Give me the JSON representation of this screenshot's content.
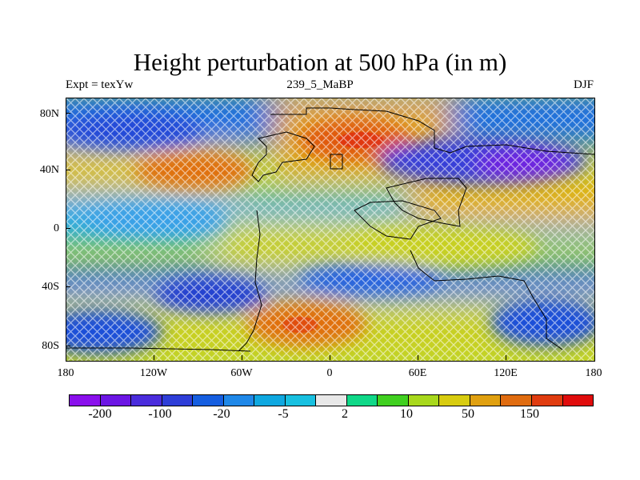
{
  "title": "Height perturbation at 500 hPa (in m)",
  "left_label": "Expt = texYw",
  "center_label": "239_5_MaBP",
  "right_label": "DJF",
  "lat_labels": [
    "80N",
    "40N",
    "0",
    "40S",
    "80S"
  ],
  "lon_labels": [
    "180",
    "120W",
    "60W",
    "0",
    "60E",
    "120E",
    "180"
  ],
  "colorbar": {
    "colors": [
      "#8a10ec",
      "#6c16e4",
      "#4a2cdc",
      "#2e3ed8",
      "#155ee0",
      "#1f88e8",
      "#0fa8e0",
      "#18c0e0",
      "#e8e8e8",
      "#10d888",
      "#40d020",
      "#a8d81c",
      "#d8cc10",
      "#e0a010",
      "#e06c10",
      "#e03c10",
      "#e00c0c"
    ],
    "labels": [
      "-200",
      "-100",
      "-20",
      "-5",
      "2",
      "10",
      "50",
      "150"
    ]
  }
}
